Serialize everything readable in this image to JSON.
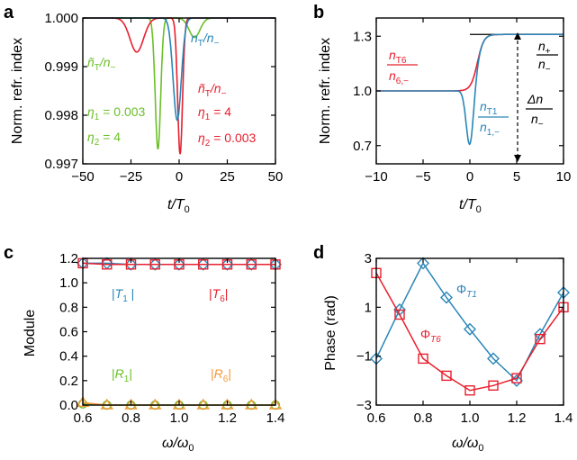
{
  "colors": {
    "blue": "#2a86b8",
    "red": "#e8202e",
    "green": "#6cbf2a",
    "orange": "#f29a3a"
  },
  "chart_data": [
    {
      "panel": "a",
      "type": "line",
      "xlabel": "t/T0",
      "xlabel_main": "t/T",
      "xlabel_sub": "0",
      "ylabel": "Norm. refr. index",
      "xlim": [
        -50,
        50
      ],
      "ylim": [
        0.997,
        1.0
      ],
      "xticks": [
        "-50",
        "-25",
        "0",
        "25",
        "50"
      ],
      "yticks": [
        "0.997",
        "0.998",
        "0.999",
        "1.000"
      ],
      "series": [
        {
          "name": "green, eta1=0.003, eta2=4",
          "color": "green",
          "center": -11,
          "width": 2.0,
          "depth": 0.0027,
          "side_dip": {
            "center": 8,
            "width": 4,
            "depth": 0.0004
          }
        },
        {
          "name": "red, eta1=4, eta2=0.003",
          "color": "red",
          "center": 0.5,
          "width": 1.8,
          "depth": 0.0028,
          "side_dip": {
            "center": -22,
            "width": 5,
            "depth": 0.0007
          }
        },
        {
          "name": "blue, nT/n-",
          "color": "blue",
          "center": -1,
          "width": 3.0,
          "depth": 0.0021
        }
      ],
      "annotations": {
        "blue_label": {
          "main": "n",
          "sub1": "T",
          "slash": "/n",
          "sub2": "−"
        },
        "red_label": {
          "main": "ñ",
          "sub1": "T",
          "slash": "/n",
          "sub2": "−",
          "eta1_prefix": "η",
          "eta1_sub": "1",
          "eta1_val": " = 4",
          "eta2_prefix": "η",
          "eta2_sub": "2",
          "eta2_val": " = 0.003"
        },
        "green_label": {
          "main": "ñ",
          "sub1": "T",
          "slash": "/n",
          "sub2": "−",
          "eta1_prefix": "η",
          "eta1_sub": "1",
          "eta1_val": " = 0.003",
          "eta2_prefix": "η",
          "eta2_sub": "2",
          "eta2_val": " = 4"
        }
      }
    },
    {
      "panel": "b",
      "type": "line",
      "xlabel": "t/T0",
      "xlabel_main": "t/T",
      "xlabel_sub": "0",
      "ylabel": "Norm. refr. index",
      "xlim": [
        -10,
        10
      ],
      "ylim": [
        0.6,
        1.4
      ],
      "xticks": [
        "-10",
        "-5",
        "0",
        "5",
        "10"
      ],
      "yticks": [
        "0.7",
        "1.0",
        "1.3"
      ],
      "series": [
        {
          "name": "nT6/n6,-",
          "color": "red",
          "start": 1.0,
          "end": 1.31,
          "dip": 0
        },
        {
          "name": "nT1/n1,-",
          "color": "blue",
          "start": 1.0,
          "end": 1.31,
          "dip": 0.32
        }
      ],
      "ref_line": 1.31,
      "annotations": {
        "red_num": "n",
        "red_num_sub": "T6",
        "red_den": "n",
        "red_den_sub": "6,−",
        "blue_num": "n",
        "blue_num_sub": "T1",
        "blue_den": "n",
        "blue_den_sub": "1,−",
        "ratio_num": "n",
        "ratio_num_sub": "+",
        "ratio_den": "n",
        "ratio_den_sub": "−",
        "delta_num": "Δn",
        "delta_den": "n",
        "delta_den_sub": "−"
      }
    },
    {
      "panel": "c",
      "type": "scatter",
      "xlabel": "ω/ω0",
      "xlabel_main": "ω/ω",
      "xlabel_sub": "0",
      "ylabel": "Module",
      "xlim": [
        0.6,
        1.4
      ],
      "ylim": [
        0,
        1.2
      ],
      "xticks": [
        "0.6",
        "0.8",
        "1.0",
        "1.2",
        "1.4"
      ],
      "yticks": [
        "0.0",
        "0.2",
        "0.4",
        "0.6",
        "0.8",
        "1.0",
        "1.2"
      ],
      "x": [
        0.6,
        0.7,
        0.8,
        0.9,
        1.0,
        1.1,
        1.2,
        1.3,
        1.4
      ],
      "series": [
        {
          "name": "|T1|",
          "color": "blue",
          "marker": "diamond",
          "values": [
            1.16,
            1.16,
            1.15,
            1.15,
            1.15,
            1.15,
            1.15,
            1.15,
            1.15
          ]
        },
        {
          "name": "|T6|",
          "color": "red",
          "marker": "square",
          "values": [
            1.16,
            1.15,
            1.15,
            1.15,
            1.15,
            1.15,
            1.15,
            1.15,
            1.15
          ]
        },
        {
          "name": "|R1|",
          "color": "green",
          "marker": "circle",
          "values": [
            0.01,
            0.0,
            0.0,
            0.0,
            0.0,
            0.0,
            0.0,
            0.0,
            0.0
          ]
        },
        {
          "name": "|R6|",
          "color": "orange",
          "marker": "triangle",
          "values": [
            0.02,
            0.0,
            0.0,
            0.0,
            0.0,
            0.0,
            0.0,
            0.0,
            0.0
          ]
        }
      ],
      "labels": {
        "T1": "T",
        "T1_sub": "1",
        "T6": "T",
        "T6_sub": "6",
        "R1": "R",
        "R1_sub": "1",
        "R6": "R",
        "R6_sub": "6"
      }
    },
    {
      "panel": "d",
      "type": "line",
      "xlabel": "ω/ω0",
      "xlabel_main": "ω/ω",
      "xlabel_sub": "0",
      "ylabel": "Phase (rad)",
      "xlim": [
        0.6,
        1.4
      ],
      "ylim": [
        -3,
        3
      ],
      "xticks": [
        "0.6",
        "0.8",
        "1.0",
        "1.2",
        "1.4"
      ],
      "yticks": [
        "−3",
        "−1",
        "1",
        "3"
      ],
      "x": [
        0.6,
        0.7,
        0.8,
        0.9,
        1.0,
        1.1,
        1.2,
        1.3,
        1.4
      ],
      "series": [
        {
          "name": "ΦT1",
          "color": "blue",
          "marker": "diamond",
          "values": [
            -1.1,
            0.9,
            2.8,
            1.4,
            0.1,
            -1.1,
            -2.0,
            -0.1,
            1.6
          ]
        },
        {
          "name": "ΦT6",
          "color": "red",
          "marker": "square",
          "values": [
            2.4,
            0.7,
            -1.1,
            -1.8,
            -2.4,
            -2.2,
            -1.9,
            -0.3,
            1.0
          ]
        }
      ],
      "labels": {
        "PhiT1": "Φ",
        "PhiT1_sub": "T1",
        "PhiT6": "Φ",
        "PhiT6_sub": "T6"
      }
    }
  ],
  "panel_labels": {
    "a": "a",
    "b": "b",
    "c": "c",
    "d": "d"
  }
}
